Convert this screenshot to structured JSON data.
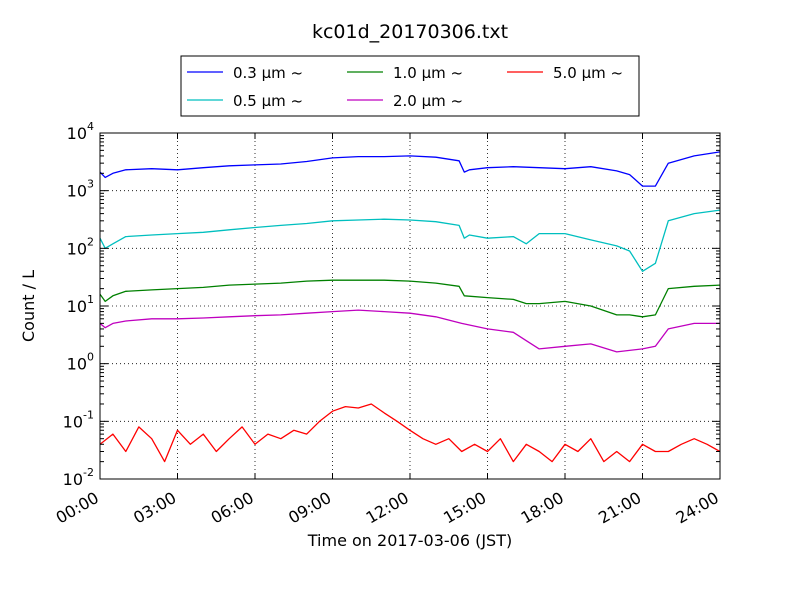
{
  "chart_data": {
    "type": "line",
    "title": "kc01d_20170306.txt",
    "xlabel": "Time on 2017-03-06 (JST)",
    "ylabel": "Count / L",
    "x_unit": "hours (JST)",
    "xlim": [
      0,
      24
    ],
    "ylim": [
      0.01,
      10000
    ],
    "yscale": "log",
    "x_ticks": [
      "00:00",
      "03:00",
      "06:00",
      "09:00",
      "12:00",
      "15:00",
      "18:00",
      "21:00",
      "24:00"
    ],
    "y_ticks": [
      {
        "base": "10",
        "exp": "-2"
      },
      {
        "base": "10",
        "exp": "-1"
      },
      {
        "base": "10",
        "exp": "0"
      },
      {
        "base": "10",
        "exp": "1"
      },
      {
        "base": "10",
        "exp": "2"
      },
      {
        "base": "10",
        "exp": "3"
      },
      {
        "base": "10",
        "exp": "4"
      }
    ],
    "grid": true,
    "legend_position": "top-center",
    "series": [
      {
        "name": "0.3 μm ~",
        "color": "#0000ff",
        "x": [
          0,
          0.2,
          0.5,
          1,
          2,
          3,
          4,
          5,
          6,
          7,
          8,
          9,
          10,
          11,
          12,
          13,
          13.9,
          14.1,
          14.3,
          15,
          16,
          17,
          18,
          19,
          20,
          20.5,
          21,
          21.5,
          22,
          23,
          24
        ],
        "y": [
          2100,
          1700,
          2000,
          2300,
          2400,
          2300,
          2500,
          2700,
          2800,
          2900,
          3200,
          3700,
          3900,
          3900,
          4000,
          3800,
          3300,
          2100,
          2300,
          2500,
          2600,
          2500,
          2400,
          2600,
          2200,
          1900,
          1200,
          1200,
          3000,
          4000,
          4700
        ]
      },
      {
        "name": "0.5 μm ~",
        "color": "#00bfbf",
        "x": [
          0,
          0.2,
          0.5,
          1,
          2,
          3,
          4,
          5,
          6,
          7,
          8,
          9,
          10,
          11,
          12,
          13,
          13.9,
          14.1,
          14.3,
          15,
          16,
          16.5,
          17,
          18,
          19,
          20,
          20.5,
          21,
          21.5,
          22,
          23,
          24
        ],
        "y": [
          150,
          100,
          120,
          160,
          170,
          180,
          190,
          210,
          230,
          250,
          270,
          300,
          310,
          320,
          310,
          290,
          250,
          150,
          170,
          150,
          160,
          120,
          180,
          180,
          140,
          110,
          90,
          40,
          55,
          300,
          400,
          460
        ]
      },
      {
        "name": "1.0 μm ~",
        "color": "#008000",
        "x": [
          0,
          0.2,
          0.5,
          1,
          2,
          3,
          4,
          5,
          6,
          7,
          8,
          9,
          10,
          11,
          12,
          13,
          13.9,
          14.1,
          15,
          16,
          16.5,
          17,
          18,
          19,
          20,
          20.5,
          21,
          21.5,
          22,
          23,
          24
        ],
        "y": [
          16,
          12,
          15,
          18,
          19,
          20,
          21,
          23,
          24,
          25,
          27,
          28,
          28,
          28,
          27,
          25,
          22,
          15,
          14,
          13,
          11,
          11,
          12,
          10,
          7,
          7,
          6.5,
          7,
          20,
          22,
          23
        ]
      },
      {
        "name": "2.0 μm ~",
        "color": "#bf00bf",
        "x": [
          0,
          0.2,
          0.5,
          1,
          2,
          3,
          4,
          5,
          6,
          7,
          8,
          9,
          10,
          11,
          12,
          13,
          14,
          15,
          16,
          16.5,
          17,
          18,
          19,
          20,
          21,
          21.5,
          22,
          23,
          24
        ],
        "y": [
          5,
          4.2,
          5,
          5.5,
          6,
          6,
          6.2,
          6.5,
          6.8,
          7,
          7.5,
          8,
          8.5,
          8,
          7.5,
          6.5,
          5,
          4,
          3.5,
          2.5,
          1.8,
          2,
          2.2,
          1.6,
          1.8,
          2,
          4,
          5,
          5
        ]
      },
      {
        "name": "5.0 μm ~",
        "color": "#ff0000",
        "x": [
          0,
          0.5,
          1,
          1.5,
          2,
          2.5,
          3,
          3.5,
          4,
          4.5,
          5,
          5.5,
          6,
          6.5,
          7,
          7.5,
          8,
          8.5,
          9,
          9.5,
          10,
          10.5,
          11,
          11.5,
          12,
          12.5,
          13,
          13.5,
          14,
          14.5,
          15,
          15.5,
          16,
          16.5,
          17,
          17.5,
          18,
          18.5,
          19,
          19.5,
          20,
          20.5,
          21,
          21.5,
          22,
          22.5,
          23,
          23.5,
          24
        ],
        "y": [
          0.04,
          0.06,
          0.03,
          0.08,
          0.05,
          0.02,
          0.07,
          0.04,
          0.06,
          0.03,
          0.05,
          0.08,
          0.04,
          0.06,
          0.05,
          0.07,
          0.06,
          0.1,
          0.15,
          0.18,
          0.17,
          0.2,
          0.14,
          0.1,
          0.07,
          0.05,
          0.04,
          0.05,
          0.03,
          0.04,
          0.03,
          0.05,
          0.02,
          0.04,
          0.03,
          0.02,
          0.04,
          0.03,
          0.05,
          0.02,
          0.03,
          0.02,
          0.04,
          0.03,
          0.03,
          0.04,
          0.05,
          0.04,
          0.03
        ]
      }
    ]
  }
}
